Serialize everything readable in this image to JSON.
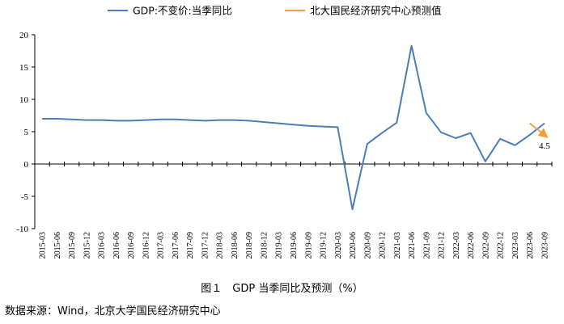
{
  "caption": "图１　GDP 当季同比及预测（%）",
  "source": "数据来源：Wind，北京大学国民经济研究中心",
  "chart_data": {
    "type": "line",
    "categories": [
      "2015-03",
      "2015-06",
      "2015-09",
      "2015-12",
      "2016-03",
      "2016-06",
      "2016-09",
      "2016-12",
      "2017-03",
      "2017-06",
      "2017-09",
      "2017-12",
      "2018-03",
      "2018-06",
      "2018-09",
      "2018-12",
      "2019-03",
      "2019-06",
      "2019-09",
      "2019-12",
      "2020-03",
      "2020-06",
      "2020-09",
      "2020-12",
      "2021-03",
      "2021-06",
      "2021-09",
      "2021-12",
      "2022-03",
      "2022-06",
      "2022-09",
      "2022-12",
      "2023-03",
      "2023-06",
      "2023-09"
    ],
    "series": [
      {
        "name": "GDP:不变价:当季同比",
        "color": "#4a7ebb",
        "values": [
          7.0,
          7.0,
          6.9,
          6.8,
          6.8,
          6.7,
          6.7,
          6.8,
          6.9,
          6.9,
          6.8,
          6.7,
          6.8,
          6.8,
          6.7,
          6.5,
          6.3,
          6.1,
          5.9,
          5.8,
          5.7,
          -7.0,
          3.1,
          4.8,
          6.4,
          18.3,
          7.9,
          4.9,
          4.0,
          4.8,
          0.4,
          3.9,
          2.9,
          4.5,
          6.3
        ]
      },
      {
        "name": "北大国民经济研究中心预测值",
        "color": "#f59d3d",
        "values": [
          null,
          null,
          null,
          null,
          null,
          null,
          null,
          null,
          null,
          null,
          null,
          null,
          null,
          null,
          null,
          null,
          null,
          null,
          null,
          null,
          null,
          null,
          null,
          null,
          null,
          null,
          null,
          null,
          null,
          null,
          null,
          null,
          null,
          6.3,
          4.5
        ]
      }
    ],
    "data_labels": [
      {
        "series": 1,
        "index": 34,
        "text": "4.5"
      }
    ],
    "yticks": [
      "-10",
      "-5",
      "0",
      "5",
      "10",
      "15",
      "20"
    ],
    "ylim": [
      -10,
      20
    ],
    "grid": false,
    "legend": "top"
  }
}
